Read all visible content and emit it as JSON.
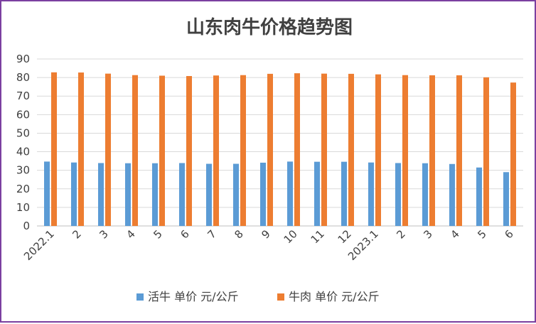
{
  "chart_data": {
    "type": "bar",
    "title": "山东肉牛价格趋势图",
    "xlabel": "",
    "ylabel": "",
    "ylim": [
      0,
      90
    ],
    "yticks": [
      0,
      10,
      20,
      30,
      40,
      50,
      60,
      70,
      80,
      90
    ],
    "grid": true,
    "legend_position": "bottom",
    "categories": [
      "2022.1",
      "2",
      "3",
      "4",
      "5",
      "6",
      "7",
      "8",
      "9",
      "10",
      "11",
      "12",
      "2023.1",
      "2",
      "3",
      "4",
      "5",
      "6"
    ],
    "series": [
      {
        "name": "活牛 单价 元/公斤",
        "color": "#5b9bd5",
        "values": [
          34.7,
          34.2,
          33.9,
          33.8,
          33.8,
          33.9,
          33.5,
          33.5,
          34.1,
          34.7,
          34.6,
          34.6,
          34.2,
          33.9,
          33.8,
          33.4,
          31.5,
          29.0
        ]
      },
      {
        "name": "牛肉 单价 元/公斤",
        "color": "#ed7d31",
        "values": [
          82.8,
          82.7,
          82.1,
          81.3,
          81.0,
          80.8,
          81.1,
          81.3,
          82.0,
          82.3,
          82.1,
          82.0,
          81.7,
          81.3,
          81.2,
          81.2,
          80.1,
          77.3
        ]
      }
    ]
  }
}
